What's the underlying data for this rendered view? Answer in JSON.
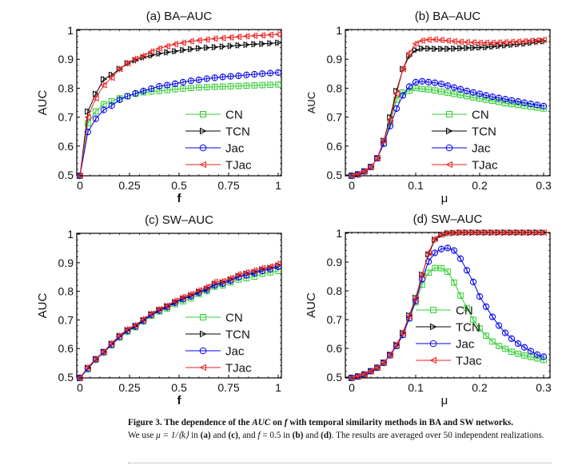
{
  "chart_data": [
    {
      "type": "line",
      "panel": "a",
      "title": "(a) BA–AUC",
      "xlabel": "f",
      "ylabel": "AUC",
      "xlim": [
        0,
        1
      ],
      "ylim": [
        0.5,
        1
      ],
      "xticks": [
        0,
        0.25,
        0.5,
        0.75,
        1
      ],
      "xtick_labels": [
        "0",
        "0.25",
        "0.5",
        "0.75",
        "1"
      ],
      "yticks": [
        0.5,
        0.6,
        0.7,
        0.8,
        0.9,
        1
      ],
      "ytick_labels": [
        "0.5",
        "0.6",
        "0.7",
        "0.8",
        "0.9",
        "1"
      ],
      "legend_position": "bottom-right",
      "x": [
        0,
        0.04,
        0.08,
        0.12,
        0.16,
        0.2,
        0.24,
        0.28,
        0.32,
        0.36,
        0.4,
        0.44,
        0.48,
        0.52,
        0.56,
        0.6,
        0.64,
        0.68,
        0.72,
        0.76,
        0.8,
        0.84,
        0.88,
        0.92,
        0.96,
        1
      ],
      "series": [
        {
          "name": "CN",
          "color": "#33cc33",
          "marker": "square",
          "values": [
            0.5,
            0.68,
            0.72,
            0.745,
            0.755,
            0.765,
            0.772,
            0.78,
            0.785,
            0.788,
            0.79,
            0.793,
            0.796,
            0.798,
            0.8,
            0.802,
            0.803,
            0.804,
            0.805,
            0.806,
            0.807,
            0.808,
            0.809,
            0.81,
            0.811,
            0.812
          ]
        },
        {
          "name": "TCN",
          "color": "#000000",
          "marker": "triangle-right",
          "values": [
            0.5,
            0.72,
            0.78,
            0.83,
            0.845,
            0.865,
            0.885,
            0.895,
            0.905,
            0.912,
            0.918,
            0.922,
            0.926,
            0.93,
            0.933,
            0.936,
            0.938,
            0.94,
            0.942,
            0.944,
            0.946,
            0.948,
            0.95,
            0.951,
            0.953,
            0.955
          ]
        },
        {
          "name": "Jac",
          "color": "#0000ee",
          "marker": "circle",
          "values": [
            0.5,
            0.65,
            0.695,
            0.725,
            0.74,
            0.76,
            0.772,
            0.782,
            0.79,
            0.798,
            0.806,
            0.81,
            0.815,
            0.82,
            0.825,
            0.828,
            0.832,
            0.835,
            0.838,
            0.84,
            0.842,
            0.845,
            0.847,
            0.849,
            0.851,
            0.853
          ]
        },
        {
          "name": "TJac",
          "color": "#ee2222",
          "marker": "triangle-left",
          "values": [
            0.5,
            0.7,
            0.765,
            0.81,
            0.835,
            0.865,
            0.885,
            0.9,
            0.91,
            0.925,
            0.935,
            0.943,
            0.95,
            0.955,
            0.96,
            0.963,
            0.966,
            0.969,
            0.971,
            0.973,
            0.975,
            0.977,
            0.979,
            0.98,
            0.982,
            0.984
          ]
        }
      ]
    },
    {
      "type": "line",
      "panel": "b",
      "title": "(b) BA–AUC",
      "xlabel": "μ",
      "ylabel": "AUC",
      "xlim": [
        0,
        0.3
      ],
      "ylim": [
        0.5,
        1
      ],
      "xticks": [
        0,
        0.1,
        0.2,
        0.3
      ],
      "xtick_labels": [
        "0",
        "0.1",
        "0.2",
        "0.3"
      ],
      "yticks": [
        0.5,
        0.6,
        0.7,
        0.8,
        0.9,
        1
      ],
      "ytick_labels": [
        "0.5",
        "0.6",
        "0.7",
        "0.8",
        "0.9",
        "1"
      ],
      "legend_position": "bottom-right",
      "x": [
        0,
        0.01,
        0.02,
        0.03,
        0.04,
        0.05,
        0.06,
        0.07,
        0.08,
        0.09,
        0.1,
        0.11,
        0.12,
        0.13,
        0.14,
        0.15,
        0.16,
        0.17,
        0.18,
        0.19,
        0.2,
        0.21,
        0.22,
        0.23,
        0.24,
        0.25,
        0.26,
        0.27,
        0.28,
        0.29,
        0.3
      ],
      "series": [
        {
          "name": "CN",
          "color": "#33cc33",
          "marker": "square",
          "values": [
            0.5,
            0.505,
            0.515,
            0.53,
            0.56,
            0.61,
            0.68,
            0.76,
            0.785,
            0.79,
            0.8,
            0.797,
            0.795,
            0.792,
            0.788,
            0.784,
            0.78,
            0.776,
            0.772,
            0.768,
            0.764,
            0.76,
            0.756,
            0.752,
            0.748,
            0.745,
            0.742,
            0.739,
            0.736,
            0.733,
            0.73
          ]
        },
        {
          "name": "TCN",
          "color": "#000000",
          "marker": "triangle-right",
          "values": [
            0.5,
            0.505,
            0.515,
            0.53,
            0.56,
            0.62,
            0.7,
            0.79,
            0.865,
            0.91,
            0.93,
            0.935,
            0.935,
            0.934,
            0.934,
            0.934,
            0.935,
            0.936,
            0.937,
            0.938,
            0.939,
            0.94,
            0.942,
            0.944,
            0.946,
            0.948,
            0.95,
            0.952,
            0.955,
            0.958,
            0.96
          ]
        },
        {
          "name": "Jac",
          "color": "#0000ee",
          "marker": "circle",
          "values": [
            0.5,
            0.505,
            0.515,
            0.53,
            0.56,
            0.61,
            0.67,
            0.73,
            0.775,
            0.805,
            0.82,
            0.823,
            0.82,
            0.818,
            0.814,
            0.808,
            0.802,
            0.796,
            0.79,
            0.785,
            0.78,
            0.775,
            0.77,
            0.766,
            0.762,
            0.758,
            0.754,
            0.75,
            0.746,
            0.742,
            0.738
          ]
        },
        {
          "name": "TJac",
          "color": "#ee2222",
          "marker": "triangle-left",
          "values": [
            0.5,
            0.505,
            0.515,
            0.53,
            0.56,
            0.62,
            0.69,
            0.78,
            0.865,
            0.92,
            0.952,
            0.962,
            0.965,
            0.966,
            0.964,
            0.962,
            0.96,
            0.958,
            0.957,
            0.956,
            0.955,
            0.955,
            0.955,
            0.956,
            0.957,
            0.958,
            0.959,
            0.96,
            0.962,
            0.963,
            0.965
          ]
        }
      ]
    },
    {
      "type": "line",
      "panel": "c",
      "title": "(c) SW–AUC",
      "xlabel": "f",
      "ylabel": "AUC",
      "xlim": [
        0,
        1
      ],
      "ylim": [
        0.5,
        1
      ],
      "xticks": [
        0,
        0.25,
        0.5,
        0.75,
        1
      ],
      "xtick_labels": [
        "0",
        "0.25",
        "0.5",
        "0.75",
        "1"
      ],
      "yticks": [
        0.5,
        0.6,
        0.7,
        0.8,
        0.9,
        1
      ],
      "ytick_labels": [
        "0.5",
        "0.6",
        "0.7",
        "0.8",
        "0.9",
        "1"
      ],
      "legend_position": "bottom-right",
      "x": [
        0,
        0.04,
        0.08,
        0.12,
        0.16,
        0.2,
        0.24,
        0.28,
        0.32,
        0.36,
        0.4,
        0.44,
        0.48,
        0.52,
        0.56,
        0.6,
        0.64,
        0.68,
        0.72,
        0.76,
        0.8,
        0.84,
        0.88,
        0.92,
        0.96,
        1
      ],
      "series": [
        {
          "name": "CN",
          "color": "#33cc33",
          "marker": "square",
          "values": [
            0.5,
            0.53,
            0.563,
            0.588,
            0.613,
            0.64,
            0.66,
            0.675,
            0.695,
            0.715,
            0.73,
            0.74,
            0.755,
            0.765,
            0.775,
            0.79,
            0.8,
            0.815,
            0.82,
            0.83,
            0.84,
            0.845,
            0.85,
            0.86,
            0.865,
            0.87
          ]
        },
        {
          "name": "TCN",
          "color": "#000000",
          "marker": "triangle-right",
          "values": [
            0.5,
            0.535,
            0.565,
            0.59,
            0.618,
            0.645,
            0.665,
            0.68,
            0.7,
            0.72,
            0.735,
            0.748,
            0.762,
            0.775,
            0.785,
            0.798,
            0.808,
            0.825,
            0.83,
            0.84,
            0.852,
            0.86,
            0.865,
            0.875,
            0.88,
            0.888
          ]
        },
        {
          "name": "Jac",
          "color": "#0000ee",
          "marker": "circle",
          "values": [
            0.5,
            0.532,
            0.564,
            0.589,
            0.615,
            0.642,
            0.663,
            0.678,
            0.698,
            0.718,
            0.733,
            0.745,
            0.76,
            0.772,
            0.782,
            0.795,
            0.805,
            0.82,
            0.826,
            0.836,
            0.848,
            0.855,
            0.862,
            0.87,
            0.876,
            0.884
          ]
        },
        {
          "name": "TJac",
          "color": "#ee2222",
          "marker": "triangle-left",
          "values": [
            0.5,
            0.537,
            0.566,
            0.591,
            0.62,
            0.646,
            0.668,
            0.682,
            0.703,
            0.722,
            0.738,
            0.75,
            0.767,
            0.78,
            0.79,
            0.803,
            0.815,
            0.832,
            0.835,
            0.845,
            0.858,
            0.865,
            0.872,
            0.88,
            0.885,
            0.895
          ]
        }
      ]
    },
    {
      "type": "line",
      "panel": "d",
      "title": "(d) SW–AUC",
      "xlabel": "μ",
      "ylabel": "AUC",
      "xlim": [
        0,
        0.3
      ],
      "ylim": [
        0.5,
        1
      ],
      "xticks": [
        0,
        0.1,
        0.2,
        0.3
      ],
      "xtick_labels": [
        "0",
        "0.1",
        "0.2",
        "0.3"
      ],
      "yticks": [
        0.5,
        0.6,
        0.7,
        0.8,
        0.9,
        1
      ],
      "ytick_labels": [
        "0.5",
        "0.6",
        "0.7",
        "0.8",
        "0.9",
        "1"
      ],
      "legend_position": "bottom-center",
      "x": [
        0,
        0.01,
        0.02,
        0.03,
        0.04,
        0.05,
        0.06,
        0.07,
        0.08,
        0.09,
        0.1,
        0.11,
        0.12,
        0.13,
        0.14,
        0.15,
        0.16,
        0.17,
        0.18,
        0.19,
        0.2,
        0.21,
        0.22,
        0.23,
        0.24,
        0.25,
        0.26,
        0.27,
        0.28,
        0.29,
        0.3
      ],
      "series": [
        {
          "name": "CN",
          "color": "#33cc33",
          "marker": "square",
          "values": [
            0.5,
            0.505,
            0.512,
            0.523,
            0.535,
            0.552,
            0.578,
            0.61,
            0.648,
            0.705,
            0.76,
            0.82,
            0.862,
            0.878,
            0.877,
            0.865,
            0.828,
            0.783,
            0.74,
            0.7,
            0.67,
            0.645,
            0.625,
            0.61,
            0.6,
            0.59,
            0.583,
            0.577,
            0.572,
            0.567,
            0.562
          ]
        },
        {
          "name": "TCN",
          "color": "#000000",
          "marker": "triangle-right",
          "values": [
            0.5,
            0.505,
            0.512,
            0.523,
            0.535,
            0.553,
            0.58,
            0.614,
            0.655,
            0.715,
            0.775,
            0.855,
            0.925,
            0.975,
            0.992,
            0.998,
            0.999,
            1,
            1,
            1,
            1,
            1,
            1,
            1,
            1,
            1,
            1,
            1,
            1,
            1,
            1
          ]
        },
        {
          "name": "Jac",
          "color": "#0000ee",
          "marker": "circle",
          "values": [
            0.5,
            0.505,
            0.512,
            0.523,
            0.535,
            0.552,
            0.578,
            0.61,
            0.648,
            0.705,
            0.765,
            0.84,
            0.9,
            0.93,
            0.943,
            0.947,
            0.938,
            0.91,
            0.87,
            0.83,
            0.78,
            0.745,
            0.71,
            0.68,
            0.655,
            0.635,
            0.618,
            0.605,
            0.592,
            0.58,
            0.573
          ]
        },
        {
          "name": "TJac",
          "color": "#ee2222",
          "marker": "triangle-left",
          "values": [
            0.5,
            0.505,
            0.512,
            0.523,
            0.535,
            0.553,
            0.58,
            0.614,
            0.655,
            0.712,
            0.772,
            0.853,
            0.93,
            0.978,
            0.993,
            0.998,
            0.999,
            1,
            1,
            1,
            1,
            1,
            1,
            1,
            1,
            1,
            1,
            1,
            1,
            1,
            1
          ]
        }
      ]
    }
  ],
  "caption": {
    "label": "Figure 3.",
    "title_pre": " The dependence of the ",
    "title_auc": "AUC",
    "title_on": " on ",
    "title_f": "f",
    "title_post": " with temporal similarity methods in BA and SW networks.",
    "body_1": "We use ",
    "mu_expr": "μ = 1/⟨k⟩",
    "body_2": " in ",
    "a": "(a)",
    "body_3": " and ",
    "c": "(c)",
    "body_4": ", and ",
    "f_expr": "f",
    "body_5": " = 0.5 in ",
    "b": "(b)",
    "body_6": " and ",
    "d": "(d)",
    "body_7": ". The results are averaged over 50 independent realizations."
  }
}
